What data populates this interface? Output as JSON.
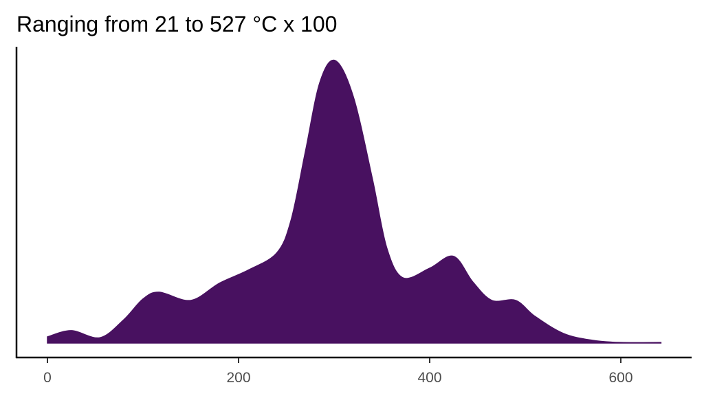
{
  "chart_data": {
    "type": "area",
    "title": "Ranging from 21 to 527 °C x 100",
    "xlabel": "",
    "ylabel": "",
    "xlim": [
      0,
      642
    ],
    "ylim": [
      0,
      1
    ],
    "x_ticks": [
      "0",
      "200",
      "400",
      "600"
    ],
    "x_tick_values": [
      0,
      200,
      400,
      600
    ],
    "y_axis_labels_shown": false,
    "grid": false,
    "fill_color": "#481160",
    "x": [
      0,
      25,
      55,
      80,
      100,
      117,
      150,
      180,
      210,
      240,
      255,
      270,
      285,
      301,
      320,
      340,
      355,
      372,
      400,
      425,
      445,
      465,
      490,
      510,
      540,
      570,
      600,
      642
    ],
    "y": [
      0.022,
      0.044,
      0.019,
      0.083,
      0.156,
      0.18,
      0.151,
      0.212,
      0.258,
      0.319,
      0.436,
      0.679,
      0.922,
      1.0,
      0.873,
      0.582,
      0.338,
      0.231,
      0.265,
      0.307,
      0.217,
      0.151,
      0.151,
      0.095,
      0.034,
      0.01,
      0.002,
      0.002
    ]
  }
}
